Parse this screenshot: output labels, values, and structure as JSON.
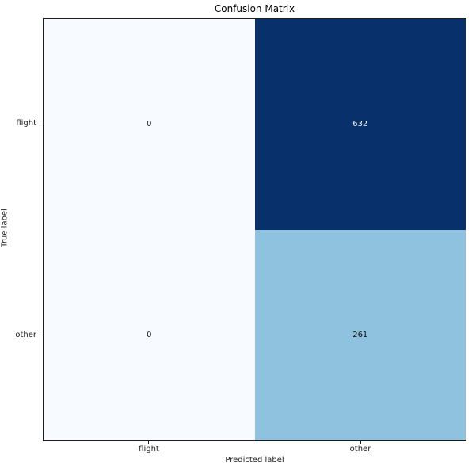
{
  "chart_data": {
    "type": "heatmap",
    "title": "Confusion Matrix",
    "xlabel": "Predicted label",
    "ylabel": "True label",
    "x_categories": [
      "flight",
      "other"
    ],
    "y_categories": [
      "flight",
      "other"
    ],
    "matrix": [
      [
        0,
        632
      ],
      [
        0,
        261
      ]
    ],
    "colormap": "Blues",
    "legend_position": "none",
    "grid": false,
    "colors": {
      "min_cell": "#f7fbff",
      "max_cell": "#08306b",
      "mid_cell": "#8fc2de",
      "spine": "#1c1c1c",
      "background": "#ffffff"
    },
    "cells": [
      {
        "row": "flight",
        "col": "flight",
        "value": "0",
        "bg": "#f7fbff",
        "text_color": "#1a1a1a"
      },
      {
        "row": "flight",
        "col": "other",
        "value": "632",
        "bg": "#08306b",
        "text_color": "#f5f9fc"
      },
      {
        "row": "other",
        "col": "flight",
        "value": "0",
        "bg": "#f7fbff",
        "text_color": "#1a1a1a"
      },
      {
        "row": "other",
        "col": "other",
        "value": "261",
        "bg": "#8fc2de",
        "text_color": "#111111"
      }
    ]
  }
}
